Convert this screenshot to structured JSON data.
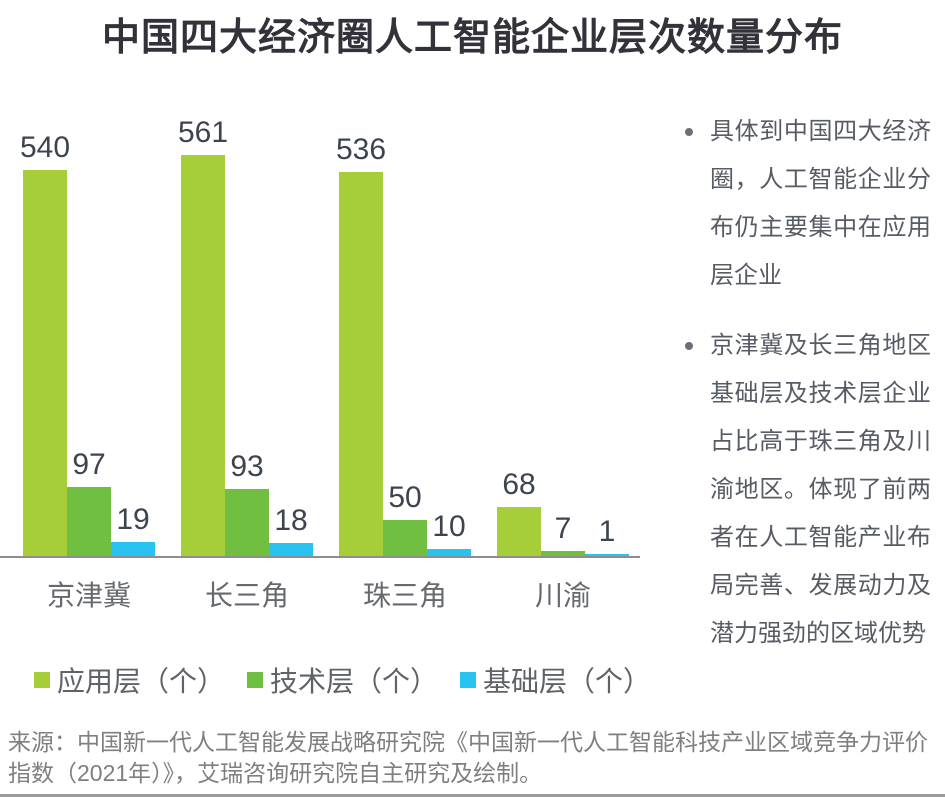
{
  "title": "中国四大经济圈人工智能企业层次数量分布",
  "chart_data": {
    "type": "bar",
    "title": "中国四大经济圈人工智能企业层次数量分布",
    "categories": [
      "京津冀",
      "长三角",
      "珠三角",
      "川渝"
    ],
    "series": [
      {
        "name": "应用层（个）",
        "color": "#a6ce39",
        "values": [
          540,
          561,
          536,
          68
        ]
      },
      {
        "name": "技术层（个）",
        "color": "#70bf41",
        "values": [
          97,
          93,
          50,
          7
        ]
      },
      {
        "name": "基础层（个）",
        "color": "#29c3f1",
        "values": [
          19,
          18,
          10,
          1
        ]
      }
    ],
    "xlabel": "",
    "ylabel": "",
    "ylim": [
      0,
      640
    ],
    "grid": false,
    "value_labels": true,
    "legend_position": "bottom",
    "axis_color": "#8d8d8d"
  },
  "panel": {
    "bullets": [
      "具体到中国四大经济圈，人工智能企业分布仍主要集中在应用层企业",
      "京津冀及长三角地区基础层及技术层企业占比高于珠三角及川渝地区。体现了前两者在人工智能产业布局完善、发展动力及潜力强劲的区域优势"
    ]
  },
  "footer": {
    "source": "来源：中国新一代人工智能发展战略研究院《中国新一代人工智能科技产业区域竞争力评价指数（2021年）》，艾瑞咨询研究院自主研究及绘制。"
  }
}
